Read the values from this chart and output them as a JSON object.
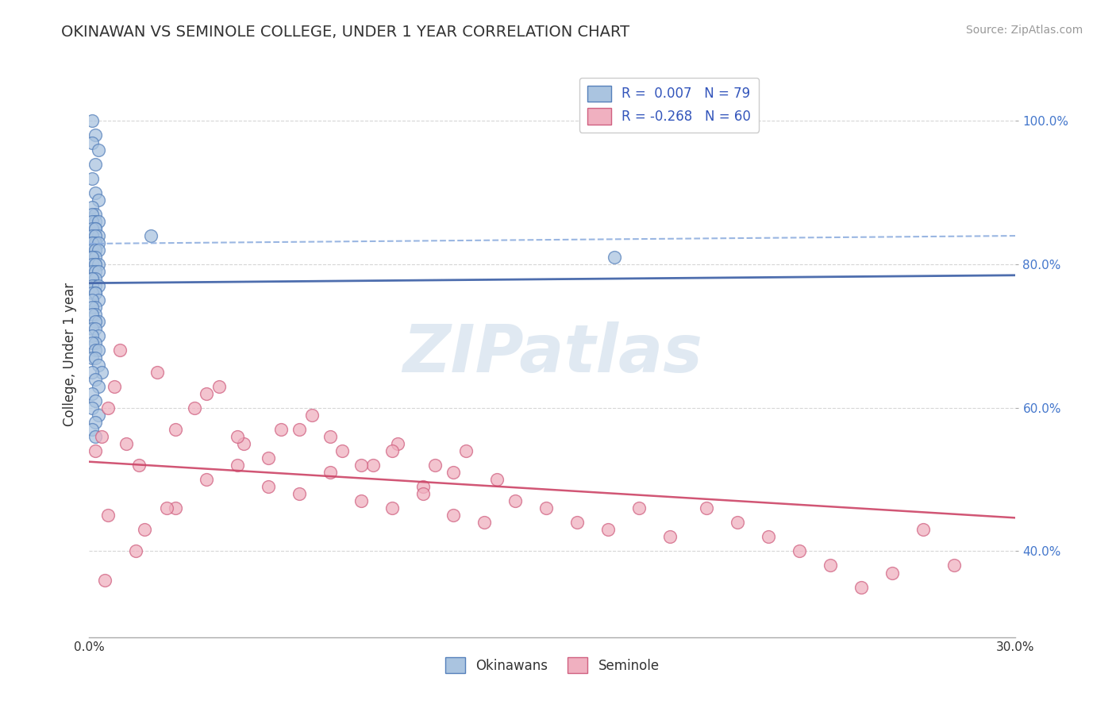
{
  "title": "OKINAWAN VS SEMINOLE COLLEGE, UNDER 1 YEAR CORRELATION CHART",
  "source_text": "Source: ZipAtlas.com",
  "ylabel": "College, Under 1 year",
  "xlim": [
    0.0,
    0.3
  ],
  "ylim": [
    0.28,
    1.07
  ],
  "xtick_major": [
    0.0,
    0.3
  ],
  "xtick_minor": [
    0.05,
    0.1,
    0.15,
    0.2,
    0.25
  ],
  "xtick_labels_major": [
    "0.0%",
    "30.0%"
  ],
  "ytick_vals": [
    0.4,
    0.6,
    0.8,
    1.0
  ],
  "ytick_labels": [
    "40.0%",
    "60.0%",
    "80.0%",
    "100.0%"
  ],
  "blue_color": "#aac4e0",
  "blue_edge": "#5580bb",
  "pink_color": "#f0b0c0",
  "pink_edge": "#d06080",
  "trend_blue_solid": "#4466aa",
  "trend_blue_dash": "#88aadd",
  "trend_pink": "#cc4466",
  "legend_label1": "Okinawans",
  "legend_label2": "Seminole",
  "R_blue": 0.007,
  "N_blue": 79,
  "R_pink": -0.268,
  "N_pink": 60,
  "watermark": "ZIPatlas",
  "background_color": "#ffffff",
  "grid_color": "#cccccc",
  "right_tick_color": "#4477cc",
  "blue_scatter_x": [
    0.001,
    0.002,
    0.001,
    0.003,
    0.002,
    0.001,
    0.002,
    0.003,
    0.001,
    0.002,
    0.001,
    0.002,
    0.001,
    0.003,
    0.002,
    0.001,
    0.002,
    0.003,
    0.001,
    0.002,
    0.001,
    0.002,
    0.001,
    0.003,
    0.002,
    0.001,
    0.002,
    0.003,
    0.001,
    0.002,
    0.001,
    0.002,
    0.001,
    0.003,
    0.002,
    0.001,
    0.002,
    0.003,
    0.001,
    0.002,
    0.001,
    0.002,
    0.001,
    0.003,
    0.002,
    0.001,
    0.002,
    0.003,
    0.001,
    0.002,
    0.001,
    0.002,
    0.001,
    0.003,
    0.002,
    0.001,
    0.002,
    0.003,
    0.001,
    0.002,
    0.001,
    0.002,
    0.003,
    0.001,
    0.002,
    0.003,
    0.004,
    0.001,
    0.002,
    0.003,
    0.17,
    0.02,
    0.001,
    0.002,
    0.001,
    0.003,
    0.002,
    0.001,
    0.002
  ],
  "blue_scatter_y": [
    1.0,
    0.98,
    0.97,
    0.96,
    0.94,
    0.92,
    0.9,
    0.89,
    0.88,
    0.87,
    0.87,
    0.86,
    0.86,
    0.86,
    0.85,
    0.85,
    0.85,
    0.84,
    0.84,
    0.84,
    0.83,
    0.83,
    0.83,
    0.83,
    0.82,
    0.82,
    0.82,
    0.82,
    0.81,
    0.81,
    0.81,
    0.8,
    0.8,
    0.8,
    0.8,
    0.79,
    0.79,
    0.79,
    0.78,
    0.78,
    0.78,
    0.77,
    0.77,
    0.77,
    0.76,
    0.76,
    0.76,
    0.75,
    0.75,
    0.74,
    0.74,
    0.73,
    0.73,
    0.72,
    0.72,
    0.71,
    0.71,
    0.7,
    0.7,
    0.69,
    0.69,
    0.68,
    0.68,
    0.67,
    0.67,
    0.66,
    0.65,
    0.65,
    0.64,
    0.63,
    0.81,
    0.84,
    0.62,
    0.61,
    0.6,
    0.59,
    0.58,
    0.57,
    0.56
  ],
  "pink_scatter_x": [
    0.002,
    0.004,
    0.006,
    0.008,
    0.01,
    0.012,
    0.016,
    0.022,
    0.028,
    0.034,
    0.042,
    0.05,
    0.062,
    0.072,
    0.082,
    0.092,
    0.1,
    0.112,
    0.122,
    0.132,
    0.038,
    0.048,
    0.058,
    0.068,
    0.078,
    0.088,
    0.098,
    0.108,
    0.118,
    0.006,
    0.018,
    0.028,
    0.038,
    0.048,
    0.058,
    0.068,
    0.078,
    0.088,
    0.098,
    0.108,
    0.118,
    0.128,
    0.138,
    0.148,
    0.158,
    0.168,
    0.178,
    0.188,
    0.2,
    0.21,
    0.22,
    0.23,
    0.24,
    0.25,
    0.26,
    0.27,
    0.28,
    0.005,
    0.015,
    0.025
  ],
  "pink_scatter_y": [
    0.54,
    0.56,
    0.6,
    0.63,
    0.68,
    0.55,
    0.52,
    0.65,
    0.57,
    0.6,
    0.63,
    0.55,
    0.57,
    0.59,
    0.54,
    0.52,
    0.55,
    0.52,
    0.54,
    0.5,
    0.62,
    0.56,
    0.53,
    0.57,
    0.56,
    0.52,
    0.54,
    0.49,
    0.51,
    0.45,
    0.43,
    0.46,
    0.5,
    0.52,
    0.49,
    0.48,
    0.51,
    0.47,
    0.46,
    0.48,
    0.45,
    0.44,
    0.47,
    0.46,
    0.44,
    0.43,
    0.46,
    0.42,
    0.46,
    0.44,
    0.42,
    0.4,
    0.38,
    0.35,
    0.37,
    0.43,
    0.38,
    0.36,
    0.4,
    0.46
  ]
}
